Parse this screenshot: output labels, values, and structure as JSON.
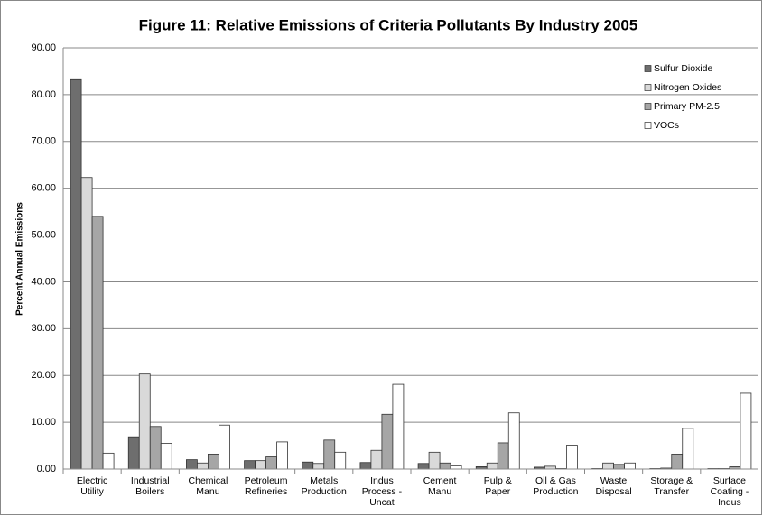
{
  "chart_data": {
    "type": "bar",
    "title": "Figure 11: Relative Emissions of Criteria Pollutants By Industry 2005",
    "y_label": "Percent Annual Emissions",
    "categories": [
      "Electric Utility",
      "Industrial Boilers",
      "Chemical Manu",
      "Petroleum Refineries",
      "Metals Production",
      "Indus Process - Uncat",
      "Cement Manu",
      "Pulp & Paper",
      "Oil & Gas Production",
      "Waste Disposal",
      "Storage & Transfer",
      "Surface Coating - Indus"
    ],
    "series": [
      {
        "name": "Sulfur Dioxide",
        "color": "#6e6e6e",
        "values": [
          83.2,
          6.9,
          2.0,
          1.8,
          1.5,
          1.4,
          1.2,
          0.5,
          0.4,
          0.1,
          0.1,
          0.1
        ]
      },
      {
        "name": "Nitrogen Oxides",
        "color": "#d9d9d9",
        "values": [
          62.3,
          20.3,
          1.3,
          1.8,
          1.2,
          4.0,
          3.6,
          1.3,
          0.6,
          1.3,
          0.2,
          0.1
        ]
      },
      {
        "name": "Primary PM-2.5",
        "color": "#a6a6a6",
        "values": [
          54.0,
          9.1,
          3.2,
          2.6,
          6.2,
          11.7,
          1.3,
          5.6,
          0.1,
          1.0,
          3.2,
          0.5
        ]
      },
      {
        "name": "VOCs",
        "color": "#ffffff",
        "values": [
          3.4,
          5.5,
          9.4,
          5.8,
          3.6,
          18.1,
          0.7,
          12.0,
          5.1,
          1.3,
          8.7,
          16.2
        ]
      }
    ],
    "ylim": [
      0,
      90
    ],
    "yticks": [
      {
        "value": 0,
        "label": "0.00"
      },
      {
        "value": 10,
        "label": "10.00"
      },
      {
        "value": 20,
        "label": "20.00"
      },
      {
        "value": 30,
        "label": "30.00"
      },
      {
        "value": 40,
        "label": "40.00"
      },
      {
        "value": 50,
        "label": "50.00"
      },
      {
        "value": 60,
        "label": "60.00"
      },
      {
        "value": 70,
        "label": "70.00"
      },
      {
        "value": 80,
        "label": "80.00"
      },
      {
        "value": 90,
        "label": "90.00"
      }
    ],
    "grid": true,
    "legend": "top-right"
  }
}
